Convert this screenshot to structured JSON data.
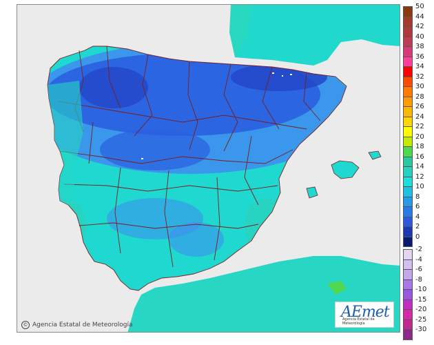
{
  "map": {
    "attribution": "Agencia Estatal de Meteorología",
    "copyright_symbol": "©",
    "logo_text": "AEmet",
    "logo_accent": "e",
    "logo_subtitle": "Agencia Estatal de Meteorología",
    "colors": {
      "sea": "#ebebeb",
      "warm_land": "#2fd4c2",
      "mild_land": "#1fd8cf",
      "cool_land": "#3f8cf0",
      "cold_land": "#2a5fe0",
      "very_cold_land": "#2346c8",
      "border": "#7a1e1e"
    }
  },
  "legend": {
    "positive": [
      {
        "label": "50",
        "color": "#8b3a0e"
      },
      {
        "label": "44",
        "color": "#a23b2a"
      },
      {
        "label": "42",
        "color": "#b03a3a"
      },
      {
        "label": "40",
        "color": "#c03c52"
      },
      {
        "label": "38",
        "color": "#d43d78"
      },
      {
        "label": "36",
        "color": "#ff3fa0"
      },
      {
        "label": "34",
        "color": "#ff0000"
      },
      {
        "label": "32",
        "color": "#ff4a00"
      },
      {
        "label": "30",
        "color": "#ff7a00"
      },
      {
        "label": "28",
        "color": "#ff9a00"
      },
      {
        "label": "26",
        "color": "#ffb800"
      },
      {
        "label": "24",
        "color": "#ffd800"
      },
      {
        "label": "22",
        "color": "#ffff00"
      },
      {
        "label": "20",
        "color": "#c8e800"
      },
      {
        "label": "18",
        "color": "#50d850"
      },
      {
        "label": "16",
        "color": "#28c8a0"
      },
      {
        "label": "14",
        "color": "#28d2c0"
      },
      {
        "label": "12",
        "color": "#20dede"
      },
      {
        "label": "10",
        "color": "#1ec0e6"
      },
      {
        "label": "8",
        "color": "#2a9ae8"
      },
      {
        "label": "6",
        "color": "#2a7ae8"
      },
      {
        "label": "4",
        "color": "#2a5ae0"
      },
      {
        "label": "2",
        "color": "#1a3ab0"
      },
      {
        "label": "0",
        "color": "#0a1a70"
      }
    ],
    "negative": [
      {
        "label": "-2",
        "color": "#e2d6f4"
      },
      {
        "label": "-4",
        "color": "#d4c0f0"
      },
      {
        "label": "-6",
        "color": "#c4a8ec"
      },
      {
        "label": "-8",
        "color": "#a878e8"
      },
      {
        "label": "-10",
        "color": "#9a58e0"
      },
      {
        "label": "-15",
        "color": "#c030c0"
      },
      {
        "label": "-20",
        "color": "#d82aa8"
      },
      {
        "label": "-25",
        "color": "#c02a90"
      },
      {
        "label": "-30",
        "color": "#8a2a8a"
      }
    ]
  }
}
